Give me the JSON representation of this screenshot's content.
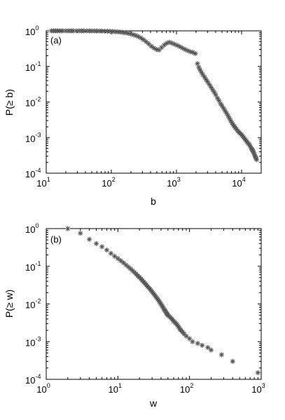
{
  "chart_data": [
    {
      "type": "scatter",
      "panel_label": "(a)",
      "xlabel": "b",
      "ylabel": "P(≥ b)",
      "x_scale": "log",
      "y_scale": "log",
      "xlim": [
        10,
        20000
      ],
      "ylim": [
        0.0001,
        1
      ],
      "x_ticks": [
        {
          "base": "10",
          "exp": "1"
        },
        {
          "base": "10",
          "exp": "2"
        },
        {
          "base": "10",
          "exp": "3"
        },
        {
          "base": "10",
          "exp": "4"
        }
      ],
      "y_ticks": [
        {
          "base": "10",
          "exp": "0"
        },
        {
          "base": "10",
          "exp": "-1"
        },
        {
          "base": "10",
          "exp": "-2"
        },
        {
          "base": "10",
          "exp": "-3"
        },
        {
          "base": "10",
          "exp": "-4"
        }
      ],
      "marker": "asterisk",
      "marker_color": "#555555",
      "series": [
        {
          "x": [
            12,
            13,
            14,
            15,
            16,
            17,
            18,
            20,
            22,
            24,
            26,
            29,
            32,
            35,
            38,
            42,
            46,
            50,
            55,
            60,
            66,
            72,
            79,
            87,
            95,
            104,
            114,
            125,
            137,
            150,
            164,
            180,
            197,
            216,
            237,
            260,
            285,
            312,
            342,
            375,
            411,
            450,
            493,
            540,
            592,
            649,
            711,
            779,
            854,
            936,
            1026,
            1124,
            1232,
            1350,
            1480,
            1622,
            1778,
            1950,
            2100,
            2200,
            2300,
            2420,
            2550,
            2700,
            2850,
            3000,
            3200,
            3400,
            3600,
            3800,
            4000,
            4250,
            4500,
            4750,
            5000,
            5300,
            5600,
            5900,
            6200,
            6500,
            6800,
            7100,
            7400,
            7700,
            8000,
            8400,
            8800,
            9200,
            9600,
            10000,
            10400,
            10800,
            11200,
            11600,
            12000,
            12400,
            12800,
            13200,
            13600,
            14000,
            14300,
            14600,
            14900,
            15200,
            15500,
            15800,
            16100,
            16400,
            16700,
            17000
          ],
          "y": [
            1.0,
            1.0,
            1.0,
            1.0,
            1.0,
            1.0,
            1.0,
            1.0,
            1.0,
            1.0,
            1.0,
            1.0,
            1.0,
            1.0,
            0.999,
            0.998,
            0.997,
            0.996,
            0.994,
            0.992,
            0.989,
            0.986,
            0.981,
            0.976,
            0.969,
            0.96,
            0.95,
            0.938,
            0.922,
            0.904,
            0.882,
            0.855,
            0.823,
            0.785,
            0.741,
            0.689,
            0.63,
            0.565,
            0.495,
            0.43,
            0.37,
            0.33,
            0.3,
            0.29,
            0.34,
            0.4,
            0.45,
            0.48,
            0.45,
            0.42,
            0.39,
            0.36,
            0.33,
            0.3,
            0.28,
            0.26,
            0.25,
            0.23,
            0.12,
            0.095,
            0.08,
            0.068,
            0.058,
            0.05,
            0.043,
            0.037,
            0.031,
            0.026,
            0.022,
            0.019,
            0.016,
            0.013,
            0.011,
            0.009,
            0.0078,
            0.0066,
            0.0056,
            0.0048,
            0.0041,
            0.0035,
            0.003,
            0.0026,
            0.0023,
            0.0021,
            0.0019,
            0.0017,
            0.0015,
            0.0014,
            0.0013,
            0.0012,
            0.0011,
            0.001,
            0.00092,
            0.00085,
            0.00078,
            0.00072,
            0.00067,
            0.00062,
            0.00057,
            0.00052,
            0.00048,
            0.00045,
            0.00042,
            0.00039,
            0.00036,
            0.00033,
            0.0003,
            0.00028,
            0.00026,
            0.00024
          ]
        }
      ]
    },
    {
      "type": "scatter",
      "panel_label": "(b)",
      "xlabel": "w",
      "ylabel": "P(≥ w)",
      "x_scale": "log",
      "y_scale": "log",
      "xlim": [
        1,
        1000
      ],
      "ylim": [
        0.0001,
        1
      ],
      "x_ticks": [
        {
          "base": "10",
          "exp": "0"
        },
        {
          "base": "10",
          "exp": "1"
        },
        {
          "base": "10",
          "exp": "2"
        },
        {
          "base": "10",
          "exp": "3"
        }
      ],
      "y_ticks": [
        {
          "base": "10",
          "exp": "0"
        },
        {
          "base": "10",
          "exp": "-1"
        },
        {
          "base": "10",
          "exp": "-2"
        },
        {
          "base": "10",
          "exp": "-3"
        },
        {
          "base": "10",
          "exp": "-4"
        }
      ],
      "marker": "asterisk",
      "marker_color": "#555555",
      "series": [
        {
          "x": [
            2,
            3,
            4,
            5,
            6,
            7,
            8,
            9,
            10,
            11,
            12,
            13,
            14,
            15,
            16,
            17,
            18,
            19,
            20,
            21,
            22,
            23,
            24,
            25,
            26,
            27,
            28,
            29,
            30,
            31,
            32,
            33,
            34,
            35,
            36,
            37,
            38,
            39,
            40,
            41,
            42,
            43,
            44,
            45,
            46,
            47,
            48,
            49,
            50,
            52,
            54,
            56,
            58,
            60,
            62,
            64,
            66,
            68,
            70,
            72,
            74,
            76,
            80,
            84,
            90,
            100,
            110,
            130,
            150,
            180,
            200,
            280,
            400,
            900
          ],
          "y": [
            1.0,
            0.75,
            0.52,
            0.4,
            0.33,
            0.27,
            0.22,
            0.185,
            0.16,
            0.14,
            0.123,
            0.108,
            0.096,
            0.086,
            0.077,
            0.069,
            0.062,
            0.056,
            0.051,
            0.046,
            0.042,
            0.038,
            0.035,
            0.032,
            0.029,
            0.027,
            0.025,
            0.023,
            0.021,
            0.0195,
            0.018,
            0.0167,
            0.0155,
            0.0144,
            0.0134,
            0.0124,
            0.0115,
            0.0107,
            0.0099,
            0.0092,
            0.0085,
            0.0079,
            0.0073,
            0.0068,
            0.0064,
            0.006,
            0.0056,
            0.0053,
            0.005,
            0.0047,
            0.0044,
            0.0041,
            0.0038,
            0.0035,
            0.0033,
            0.0031,
            0.0029,
            0.0027,
            0.0025,
            0.0023,
            0.0021,
            0.002,
            0.0018,
            0.0016,
            0.0014,
            0.0012,
            0.001,
            0.0009,
            0.0008,
            0.0007,
            0.0006,
            0.00045,
            0.0003,
            0.00015
          ]
        }
      ]
    }
  ]
}
